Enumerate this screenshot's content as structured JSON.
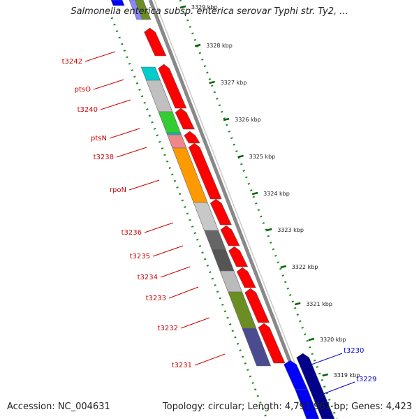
{
  "title": "Salmonella enterica subsp. enterica serovar Typhi str. Ty2, ...",
  "footer": {
    "accession": "Accession: NC_004631",
    "topology": "Topology: circular; Length: 4,791,961 bp; Genes: 4,423"
  },
  "ticks": [
    "3329 kbp",
    "3328 kbp",
    "3327 kbp",
    "3326 kbp",
    "3325 kbp",
    "3324 kbp",
    "3323 kbp",
    "3322 kbp",
    "3321 kbp",
    "3320 kbp",
    "3319 kbp"
  ],
  "gene_labels_red": [
    "t3242",
    "ptsO",
    "t3240",
    "ptsN",
    "t3238",
    "rpoN",
    "t3236",
    "t3235",
    "t3234",
    "t3233",
    "t3232",
    "t3231"
  ],
  "gene_labels_blue": [
    "t3230",
    "t3229"
  ],
  "colors": {
    "cds": "#ff0000",
    "reverse_strand": "#0000ff",
    "label_red": "#cc0000",
    "label_blue": "#0000cc",
    "backbone": "#888888",
    "dotted_ring": "#228b22",
    "tick": "#006400"
  }
}
